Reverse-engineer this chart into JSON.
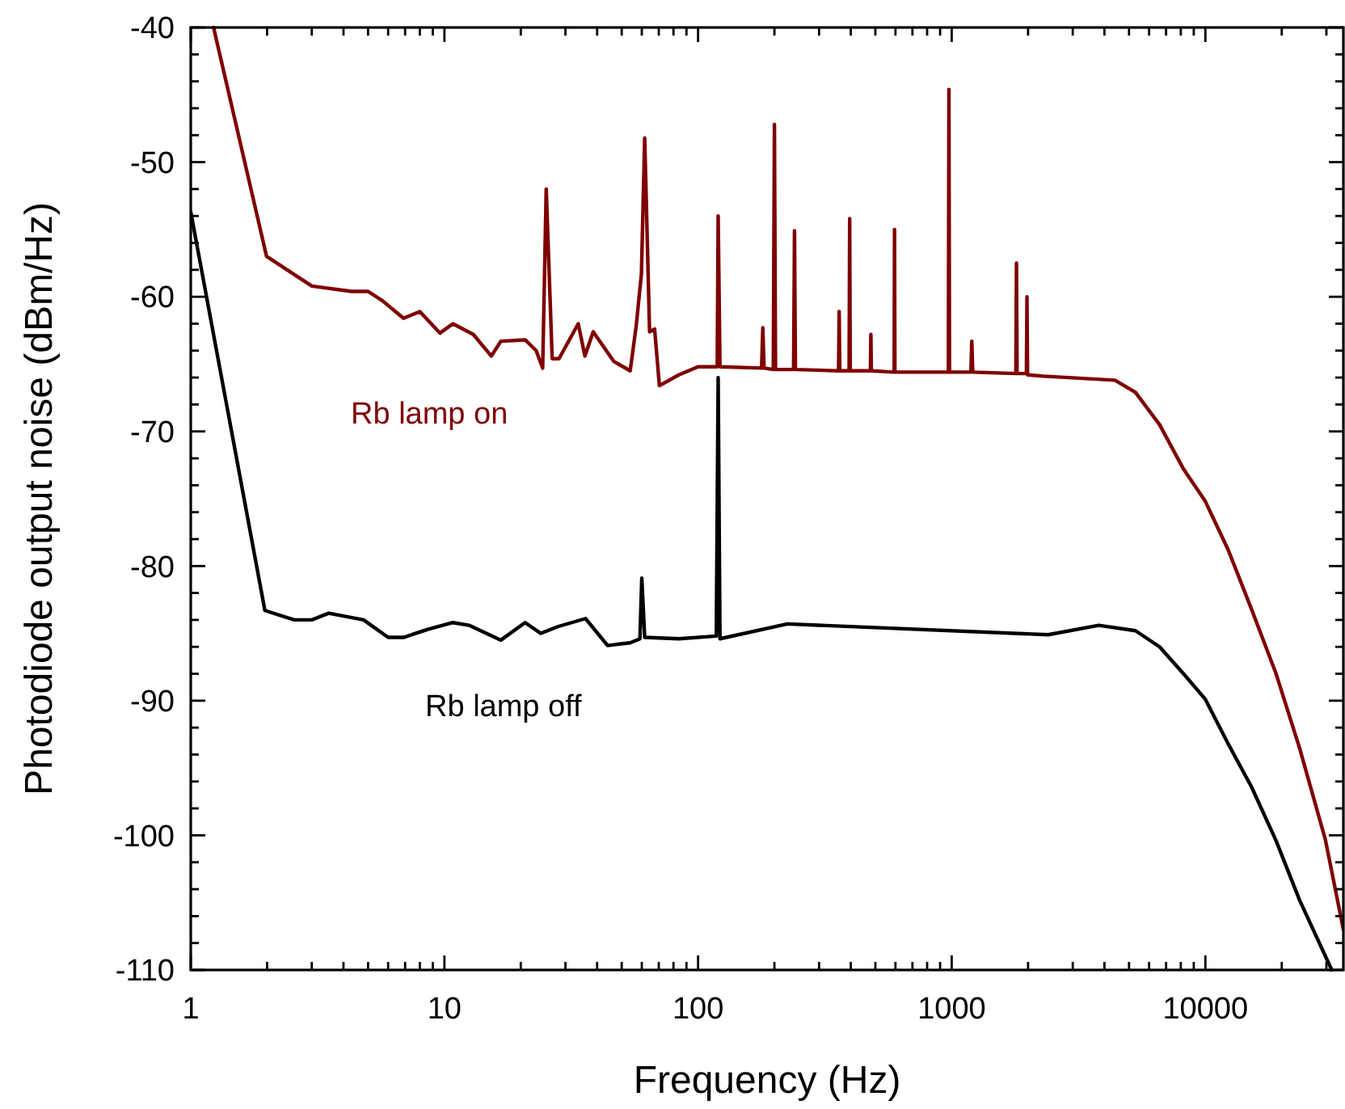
{
  "chart_data": {
    "type": "line",
    "xlabel": "Frequency (Hz)",
    "ylabel": "Photodiode output noise (dBm/Hz)",
    "log": "x",
    "grid": false,
    "marker": "none",
    "line_style": "solid",
    "xlim": [
      1,
      35000
    ],
    "ylim": [
      -110,
      -40
    ],
    "xticks": [
      1,
      {
        "value": 2,
        "label": null
      },
      {
        "value": 3,
        "label": null
      },
      {
        "value": 4,
        "label": null
      },
      {
        "value": 5,
        "label": null
      },
      {
        "value": 6,
        "label": null
      },
      {
        "value": 7,
        "label": null
      },
      {
        "value": 8,
        "label": null
      },
      {
        "value": 9,
        "label": null
      },
      10,
      {
        "value": 20,
        "label": null
      },
      {
        "value": 30,
        "label": null
      },
      {
        "value": 40,
        "label": null
      },
      {
        "value": 50,
        "label": null
      },
      {
        "value": 60,
        "label": null
      },
      {
        "value": 70,
        "label": null
      },
      {
        "value": 80,
        "label": null
      },
      {
        "value": 90,
        "label": null
      },
      100,
      {
        "value": 200,
        "label": null
      },
      {
        "value": 300,
        "label": null
      },
      {
        "value": 400,
        "label": null
      },
      {
        "value": 500,
        "label": null
      },
      {
        "value": 600,
        "label": null
      },
      {
        "value": 700,
        "label": null
      },
      {
        "value": 800,
        "label": null
      },
      {
        "value": 900,
        "label": null
      },
      1000,
      {
        "value": 2000,
        "label": null
      },
      {
        "value": 3000,
        "label": null
      },
      {
        "value": 4000,
        "label": null
      },
      {
        "value": 5000,
        "label": null
      },
      {
        "value": 6000,
        "label": null
      },
      {
        "value": 7000,
        "label": null
      },
      {
        "value": 8000,
        "label": null
      },
      {
        "value": 9000,
        "label": null
      },
      10000,
      {
        "value": 20000,
        "label": null
      },
      {
        "value": 30000,
        "label": null
      }
    ],
    "yticks": [
      -110,
      {
        "value": -108,
        "label": null
      },
      {
        "value": -106,
        "label": null
      },
      {
        "value": -104,
        "label": null
      },
      {
        "value": -102,
        "label": null
      },
      -100,
      {
        "value": -98,
        "label": null
      },
      {
        "value": -96,
        "label": null
      },
      {
        "value": -94,
        "label": null
      },
      {
        "value": -92,
        "label": null
      },
      -90,
      {
        "value": -88,
        "label": null
      },
      {
        "value": -86,
        "label": null
      },
      {
        "value": -84,
        "label": null
      },
      {
        "value": -82,
        "label": null
      },
      -80,
      {
        "value": -78,
        "label": null
      },
      {
        "value": -76,
        "label": null
      },
      {
        "value": -74,
        "label": null
      },
      {
        "value": -72,
        "label": null
      },
      -70,
      {
        "value": -68,
        "label": null
      },
      {
        "value": -66,
        "label": null
      },
      {
        "value": -64,
        "label": null
      },
      {
        "value": -62,
        "label": null
      },
      -60,
      {
        "value": -58,
        "label": null
      },
      {
        "value": -56,
        "label": null
      },
      {
        "value": -54,
        "label": null
      },
      {
        "value": -52,
        "label": null
      },
      -50,
      {
        "value": -48,
        "label": null
      },
      {
        "value": -46,
        "label": null
      },
      {
        "value": -44,
        "label": null
      },
      {
        "value": -42,
        "label": null
      },
      -40
    ],
    "series": [
      {
        "name": "Rb lamp on",
        "color": "#7f0000",
        "x": [
          1.23,
          1.99,
          3.0,
          4.3,
          5.0,
          5.7,
          6.9,
          8.0,
          9.6,
          10.8,
          13,
          15.3,
          16.7,
          20.8,
          23,
          24.4,
          25.2,
          26.6,
          28.3,
          33.7,
          35.8,
          38.6,
          46.5,
          54,
          57,
          59.8,
          61.6,
          64.4,
          67.4,
          70.4,
          84,
          100,
          119,
          120,
          122,
          178,
          180,
          182,
          198,
          200,
          202,
          238,
          240,
          242,
          358,
          360,
          362,
          394,
          396,
          398,
          478,
          480,
          482,
          593,
          595,
          597,
          970,
          975,
          980,
          1190,
          1200,
          1210,
          1790,
          1800,
          1810,
          1970,
          1980,
          1990,
          2300,
          4400,
          5300,
          6600,
          8200,
          10000,
          12300,
          15200,
          19000,
          23500,
          29700,
          35000
        ],
        "values": [
          -40,
          -57,
          -59.2,
          -59.6,
          -59.6,
          -60.3,
          -61.6,
          -61.1,
          -62.7,
          -62,
          -62.8,
          -64.4,
          -63.3,
          -63.2,
          -64,
          -65.3,
          -52,
          -64.6,
          -64.6,
          -62,
          -64.4,
          -62.6,
          -64.8,
          -65.5,
          -62.2,
          -58.3,
          -48.2,
          -62.6,
          -62.4,
          -66.6,
          -65.8,
          -65.2,
          -65.2,
          -54,
          -65.2,
          -65.3,
          -62.3,
          -65.3,
          -65.4,
          -47.2,
          -65.4,
          -65.4,
          -55.1,
          -65.4,
          -65.5,
          -61.1,
          -65.5,
          -65.5,
          -54.2,
          -65.5,
          -65.5,
          -62.8,
          -65.5,
          -65.6,
          -55,
          -65.6,
          -65.6,
          -44.6,
          -65.6,
          -65.6,
          -63.3,
          -65.6,
          -65.7,
          -57.5,
          -65.7,
          -65.7,
          -60,
          -65.8,
          -65.9,
          -66.2,
          -67.1,
          -69.5,
          -72.8,
          -75.2,
          -78.8,
          -83.2,
          -88,
          -93.5,
          -100.3,
          -107
        ]
      },
      {
        "name": "Rb lamp off",
        "color": "#000000",
        "x": [
          1,
          1.96,
          2.56,
          3.0,
          3.5,
          4.8,
          6.0,
          6.9,
          8.6,
          10.8,
          12.5,
          16.7,
          20.8,
          24,
          28,
          36,
          44,
          54,
          59,
          60,
          61.6,
          84,
          118,
          120,
          122,
          225,
          2400,
          3800,
          5300,
          6600,
          8200,
          10000,
          12300,
          15200,
          19000,
          23500,
          31500
        ],
        "values": [
          -53.7,
          -83.3,
          -84,
          -84,
          -83.5,
          -84,
          -85.3,
          -85.3,
          -84.7,
          -84.2,
          -84.4,
          -85.5,
          -84.2,
          -85,
          -84.5,
          -83.9,
          -85.9,
          -85.7,
          -85.4,
          -80.9,
          -85.3,
          -85.4,
          -85.2,
          -66,
          -85.4,
          -84.3,
          -85.1,
          -84.4,
          -84.8,
          -86,
          -88,
          -89.9,
          -93.2,
          -96.4,
          -100.4,
          -104.8,
          -110
        ]
      }
    ]
  }
}
